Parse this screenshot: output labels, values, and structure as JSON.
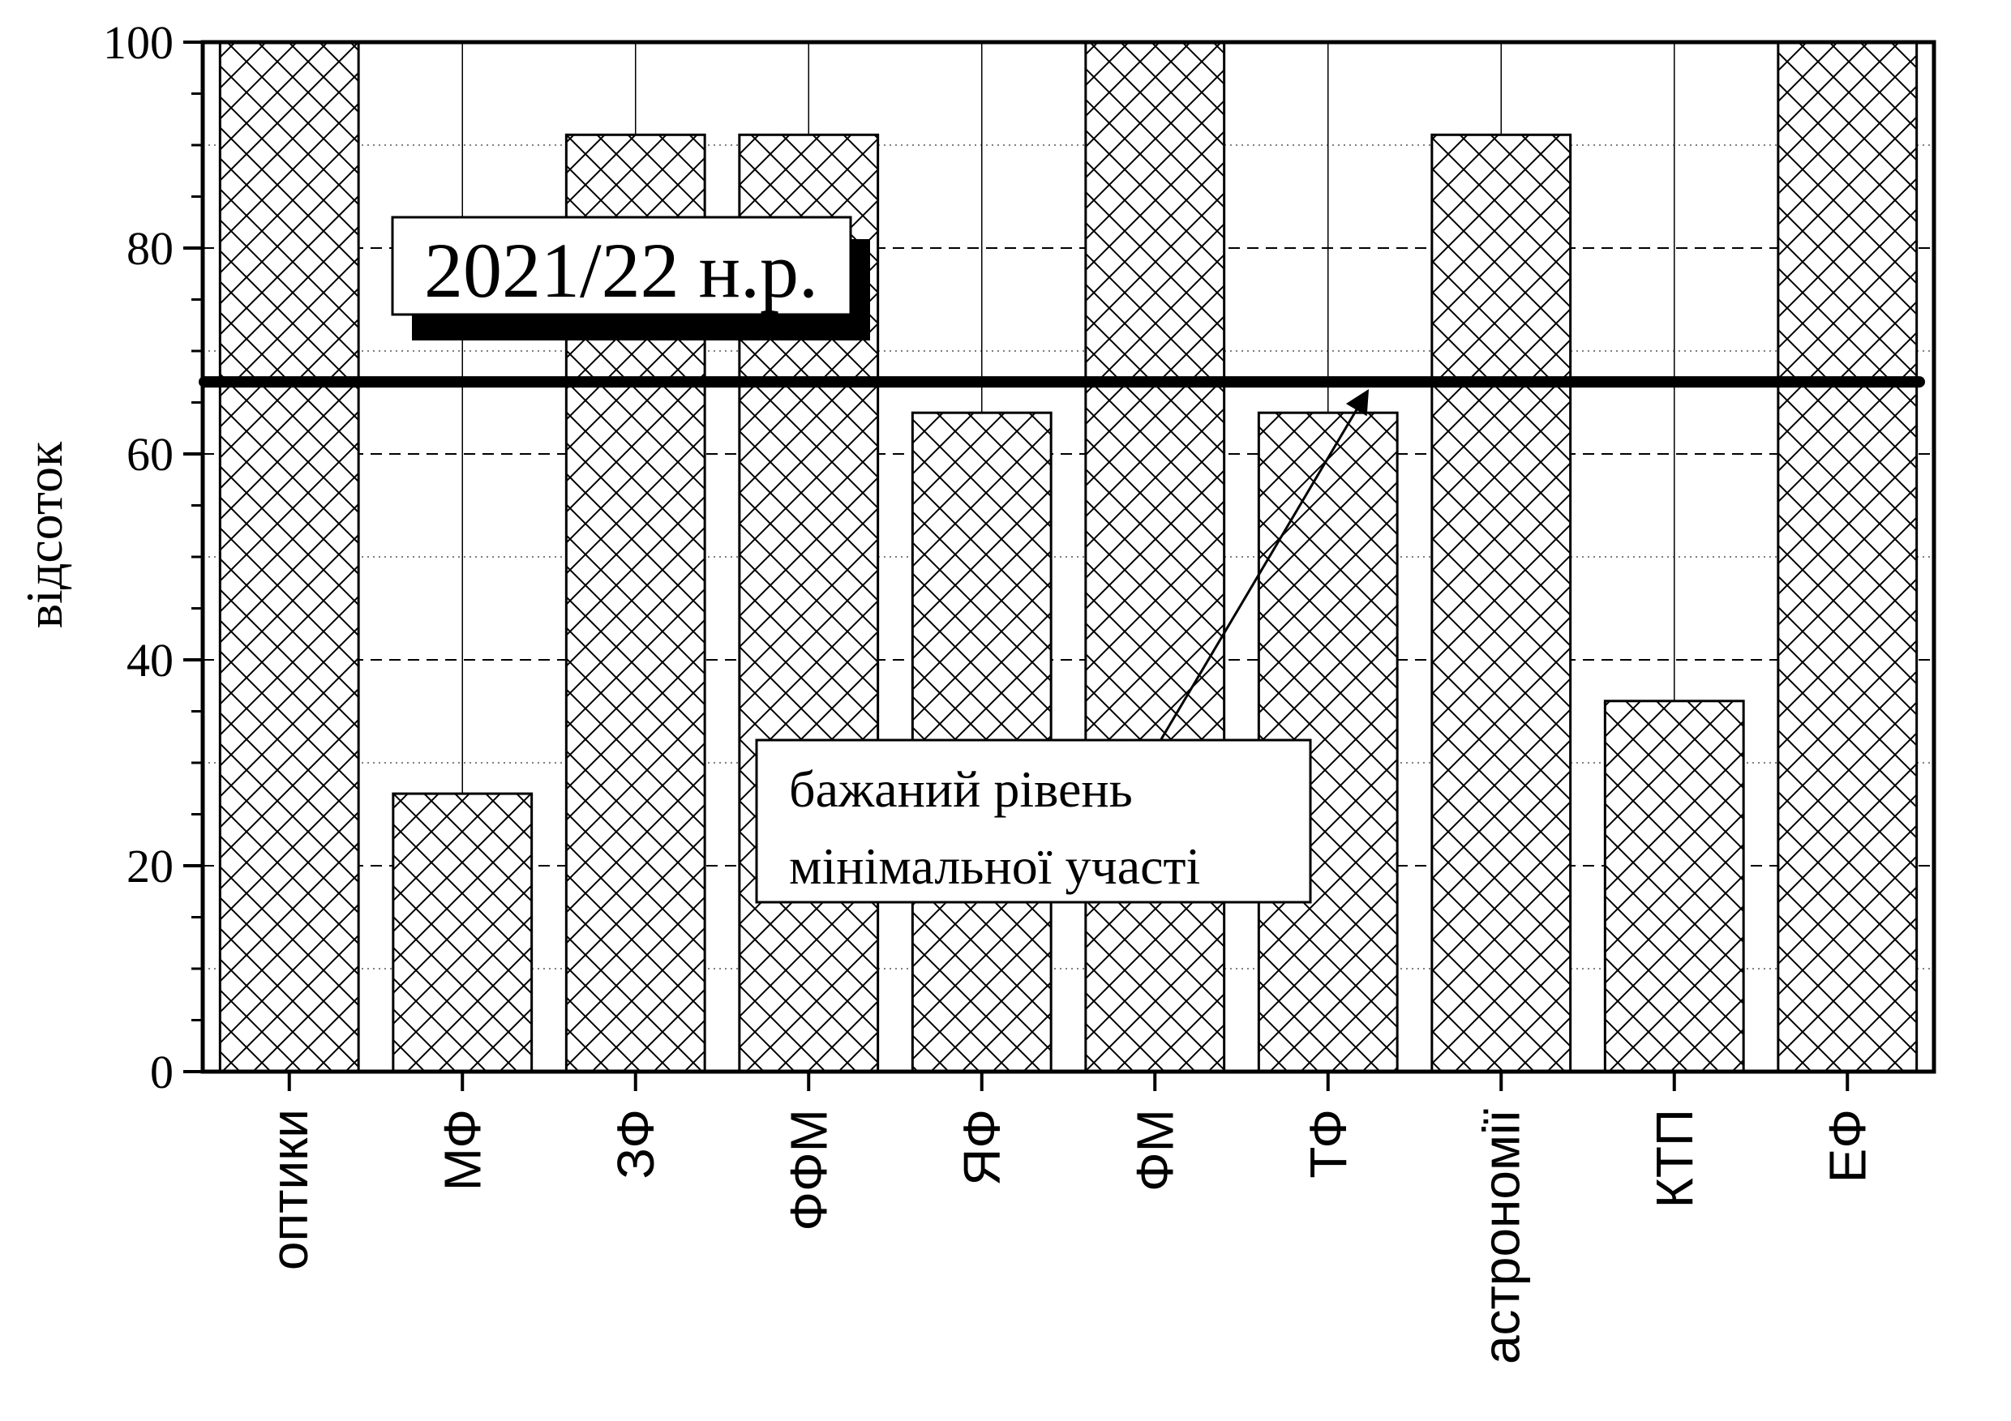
{
  "chart_data": {
    "type": "bar",
    "title": "2021/22 н.р.",
    "xlabel": "",
    "ylabel": "відсоток",
    "ylim": [
      0,
      100
    ],
    "yticks": [
      0,
      20,
      40,
      60,
      80,
      100
    ],
    "categories": [
      "оптики",
      "МФ",
      "ЗФ",
      "ФФМ",
      "ЯФ",
      "ФМ",
      "ТФ",
      "астрономії",
      "КТП",
      "ЕФ"
    ],
    "values": [
      100,
      27,
      91,
      91,
      64,
      100,
      64,
      91,
      36,
      100
    ],
    "bar_pattern": "crosshatch",
    "grid": true,
    "reference_line": {
      "value": 67
    },
    "annotation": {
      "lines": [
        "бажаний рівень",
        "мінімальної участі"
      ]
    },
    "colors": {
      "bars": "#ffffff",
      "lines": "#000000",
      "background": "#ffffff"
    }
  }
}
